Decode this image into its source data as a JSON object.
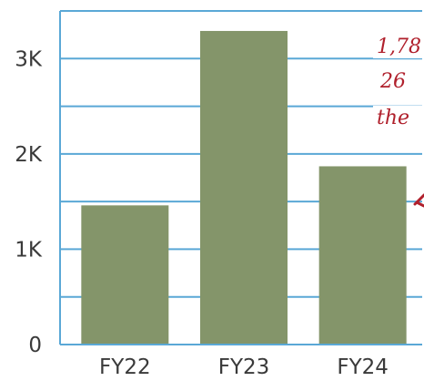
{
  "chart_data": {
    "type": "bar",
    "categories": [
      "FY22",
      "FY23",
      "FY24"
    ],
    "values": [
      1460,
      3290,
      1870
    ],
    "ylim": [
      0,
      3500
    ],
    "yticks": [
      {
        "value": 0,
        "label": "0"
      },
      {
        "value": 1000,
        "label": "1K"
      },
      {
        "value": 2000,
        "label": "2K"
      },
      {
        "value": 3000,
        "label": "3K"
      }
    ],
    "minor_gridlines": [
      500,
      1500,
      2500,
      3000,
      3500
    ],
    "grid": true,
    "bar_color": "#84956a",
    "axis_color": "#5aa8d6",
    "annotation_color": "#b0202c",
    "annotation_lines": [
      "1,78",
      "26",
      "the"
    ],
    "title": "",
    "xlabel": "",
    "ylabel": ""
  }
}
